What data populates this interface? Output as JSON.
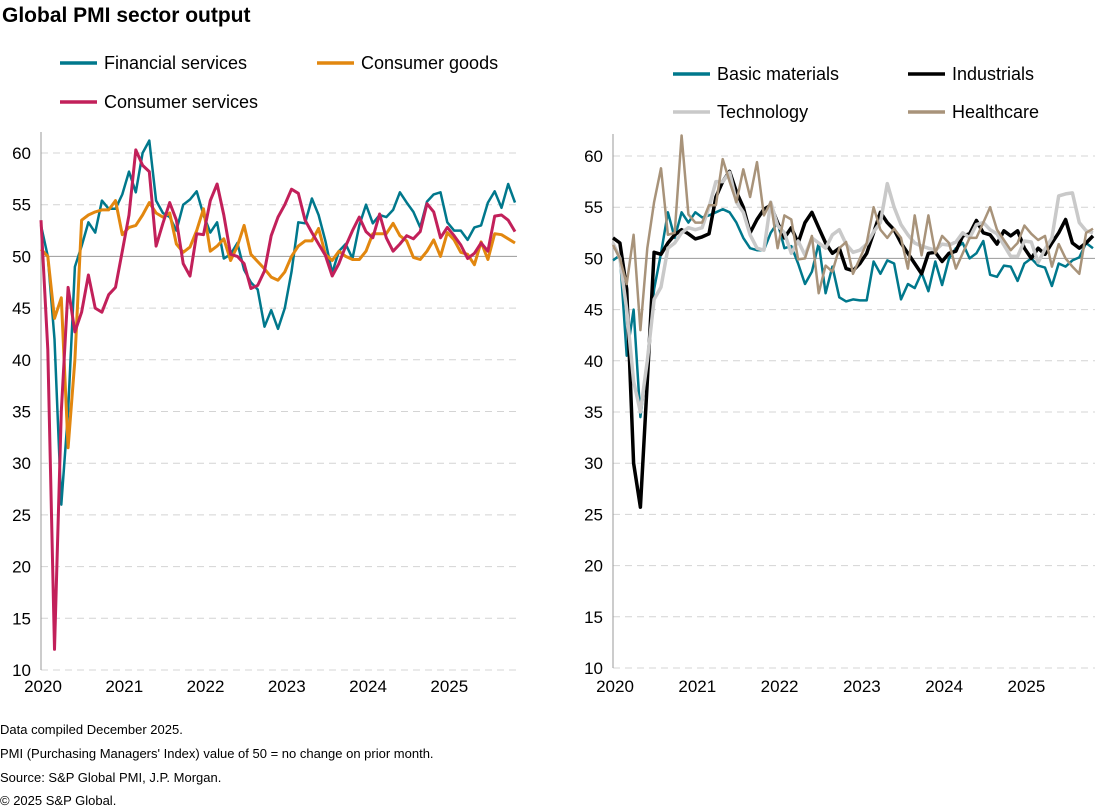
{
  "title": "Global PMI sector output",
  "footer": [
    "Data compiled December 2025.",
    "PMI (Purchasing Managers' Index) value of 50 = no change on prior month.",
    "Source: S&P Global PMI, J.P. Morgan.",
    "© 2025 S&P Global."
  ],
  "chart_data": [
    {
      "type": "line",
      "title": "",
      "x_start": "2020-01",
      "x_end": "2025-11",
      "frequency": "monthly",
      "x_ticks": [
        "2020",
        "2021",
        "2022",
        "2023",
        "2024",
        "2025"
      ],
      "y_ticks": [
        10,
        15,
        20,
        25,
        30,
        35,
        40,
        45,
        50,
        55,
        60
      ],
      "ylim": [
        10,
        62
      ],
      "reference_line": 50,
      "grid": true,
      "legend_position": "top",
      "series": [
        {
          "name": "Financial services",
          "color": "#00788C",
          "width": 2.5,
          "values": [
            53,
            50,
            42,
            26,
            35,
            49,
            51,
            53.3,
            52.3,
            55.4,
            54.6,
            54.6,
            56,
            58.2,
            56.2,
            60,
            61.2,
            55.4,
            54.2,
            53.8,
            52.5,
            55,
            55.5,
            56.3,
            54,
            52.3,
            53.3,
            49.8,
            50.2,
            51.3,
            48.7,
            47.5,
            46.8,
            43.2,
            44.8,
            43,
            45,
            48.5,
            53.3,
            53.2,
            55.6,
            54,
            51.5,
            48.4,
            50.5,
            51.2,
            49.8,
            53,
            55,
            53.2,
            54,
            53.8,
            54.5,
            56.2,
            55.2,
            54.3,
            52.8,
            55.3,
            56,
            56.2,
            53.3,
            52.5,
            52.5,
            51.6,
            52.8,
            53,
            55.2,
            56.3,
            54.7,
            57,
            55.2
          ]
        },
        {
          "name": "Consumer goods",
          "color": "#E2870F",
          "width": 3,
          "values": [
            50.7,
            50,
            44,
            46,
            31.5,
            40,
            53.5,
            54,
            54.3,
            54.5,
            54.5,
            55.4,
            52.1,
            52.8,
            53,
            54,
            55.2,
            54.2,
            53.8,
            54.2,
            51.2,
            50.4,
            50.9,
            52.5,
            54.6,
            50.5,
            51,
            51.7,
            49.6,
            51,
            53,
            50.2,
            49.5,
            48.8,
            48,
            47.7,
            48.5,
            50,
            51,
            51.5,
            51.5,
            52.7,
            50.2,
            49.6,
            50.5,
            50,
            49.7,
            49.7,
            50.5,
            52.2,
            52.2,
            52.2,
            53.2,
            52,
            51.5,
            49.9,
            49.7,
            50.5,
            51.6,
            50,
            52.3,
            51.6,
            50.4,
            50.2,
            49.2,
            51.4,
            49.7,
            52.2,
            52.1,
            51.7,
            51.3
          ]
        },
        {
          "name": "Consumer services",
          "color": "#C2205A",
          "width": 3,
          "values": [
            53.5,
            41,
            12,
            35,
            47,
            42.7,
            44.6,
            48.2,
            45,
            44.6,
            46.3,
            47,
            50.5,
            54,
            60.3,
            58.8,
            58.2,
            51,
            53.2,
            55.2,
            53.5,
            49.3,
            48.1,
            52.2,
            52.1,
            55.4,
            57,
            54,
            50.2,
            50,
            49.3,
            46.9,
            47.2,
            48.6,
            52,
            53.8,
            55,
            56.5,
            56.1,
            53.5,
            52.3,
            51.2,
            50.1,
            48.1,
            49.3,
            51,
            52.5,
            53.8,
            52.4,
            51.8,
            54.1,
            51.8,
            50.5,
            51.2,
            52,
            51.7,
            52.4,
            55.1,
            54.3,
            51.8,
            52.8,
            52,
            51.1,
            49.8,
            50.3,
            51.3,
            50.5,
            53.9,
            54,
            53.5,
            52.4
          ]
        }
      ]
    },
    {
      "type": "line",
      "title": "",
      "x_start": "2020-01",
      "x_end": "2025-11",
      "frequency": "monthly",
      "x_ticks": [
        "2020",
        "2021",
        "2022",
        "2023",
        "2024",
        "2025"
      ],
      "y_ticks": [
        10,
        15,
        20,
        25,
        30,
        35,
        40,
        45,
        50,
        55,
        60
      ],
      "ylim": [
        10,
        62
      ],
      "reference_line": 50,
      "grid": true,
      "legend_position": "top",
      "series": [
        {
          "name": "Basic materials",
          "color": "#00788C",
          "width": 2.5,
          "values": [
            49.8,
            50.3,
            40.5,
            45,
            34.5,
            40,
            47,
            50.5,
            54.5,
            52,
            54.5,
            53.5,
            54.5,
            54,
            54.2,
            54.5,
            54.8,
            54.5,
            53.5,
            52,
            51,
            50.8,
            50.8,
            52.5,
            53.5,
            51,
            51.2,
            49.5,
            47.5,
            48.7,
            51.5,
            46.6,
            49.2,
            46.2,
            45.8,
            46,
            45.9,
            45.9,
            49.7,
            48.5,
            49.8,
            49.5,
            46,
            47.5,
            47.1,
            48.6,
            46.8,
            49.7,
            47.4,
            50,
            51,
            51.5,
            50,
            50.5,
            51.7,
            48.4,
            48.2,
            49.3,
            49.2,
            47.8,
            49.5,
            50,
            49.3,
            49.1,
            47.3,
            49.5,
            49.2,
            49.8,
            50.1,
            51.5,
            51
          ]
        },
        {
          "name": "Industrials",
          "color": "#000000",
          "width": 3.5,
          "values": [
            52,
            51.5,
            47,
            30,
            25.7,
            38,
            50.6,
            50.4,
            51.5,
            52.3,
            52.8,
            52.4,
            51.9,
            52.1,
            52.4,
            56,
            57.5,
            58.5,
            56.5,
            55,
            52.5,
            53.8,
            54.8,
            55.2,
            53.5,
            52,
            53,
            51.5,
            53.5,
            54.5,
            53,
            51.5,
            50.5,
            51,
            49,
            48.8,
            49.5,
            50.5,
            52.5,
            54.5,
            53.5,
            52.8,
            51.5,
            50.5,
            49.5,
            48.5,
            50.5,
            50.6,
            49.7,
            50.5,
            50.7,
            52.2,
            52.4,
            53.7,
            52.5,
            52.3,
            51.4,
            52.7,
            52.2,
            52.7,
            51,
            50,
            51,
            50.4,
            51.5,
            52.5,
            53.8,
            51.5,
            51,
            51.5,
            52.2
          ]
        },
        {
          "name": "Technology",
          "color": "#C9C9C9",
          "width": 3.5,
          "values": [
            51.5,
            50,
            45,
            38,
            35,
            40,
            46,
            47.2,
            51,
            51.5,
            52.5,
            53,
            52.8,
            53,
            55,
            57.5,
            57.5,
            58.4,
            55.5,
            54.5,
            52.3,
            51,
            50.8,
            55.5,
            53.2,
            52.5,
            50.5,
            51.7,
            50.3,
            52,
            51.5,
            51,
            52.3,
            52.8,
            51.4,
            50.6,
            50.8,
            51.4,
            52.6,
            53.5,
            57.3,
            55,
            53.3,
            52.3,
            51.5,
            51.2,
            51,
            50.8,
            51.4,
            51.3,
            51.6,
            52.5,
            52,
            53.3,
            53.5,
            52.8,
            52.4,
            51.3,
            50.2,
            50.2,
            51.7,
            51.6,
            49.6,
            50.9,
            52,
            56.1,
            56.3,
            56.4,
            53.5,
            52.7,
            52.5
          ]
        },
        {
          "name": "Healthcare",
          "color": "#A8937A",
          "width": 2.5,
          "values": [
            51.3,
            50,
            47.5,
            52.3,
            43,
            51,
            55.5,
            58.8,
            52.3,
            52.5,
            62,
            54.3,
            53.5,
            53.5,
            55.2,
            55.2,
            59.7,
            57.5,
            55.5,
            58.7,
            56,
            59.4,
            54.2,
            55.5,
            51,
            54.2,
            53.8,
            49.9,
            50,
            52.2,
            46.6,
            49.3,
            48.7,
            51,
            51.6,
            48.5,
            50,
            51.5,
            55,
            52.8,
            52,
            52.9,
            52,
            49,
            54.2,
            50.3,
            54.2,
            50.5,
            52.2,
            51.5,
            49,
            50.5,
            52,
            52,
            53.5,
            55,
            52.8,
            51.8,
            50.8,
            51.5,
            53.2,
            52.4,
            51.8,
            52.2,
            49.2,
            51.4,
            50,
            49.2,
            48.5,
            52.5,
            52.9
          ]
        }
      ]
    }
  ]
}
